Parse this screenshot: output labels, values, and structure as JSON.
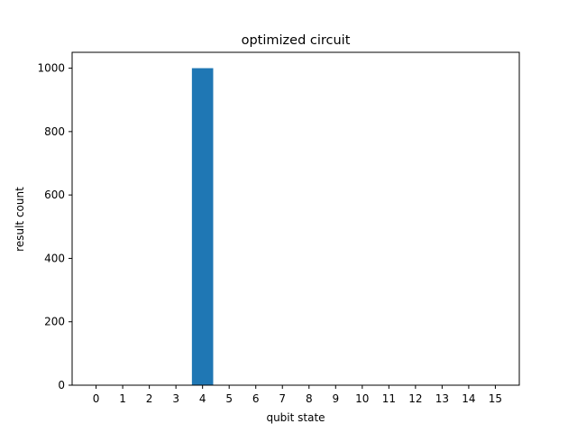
{
  "chart_data": {
    "type": "bar",
    "title": "optimized circuit",
    "xlabel": "qubit state",
    "ylabel": "result count",
    "categories": [
      "0",
      "1",
      "2",
      "3",
      "4",
      "5",
      "6",
      "7",
      "8",
      "9",
      "10",
      "11",
      "12",
      "13",
      "14",
      "15"
    ],
    "values": [
      0,
      0,
      0,
      0,
      1000,
      0,
      0,
      0,
      0,
      0,
      0,
      0,
      0,
      0,
      0,
      0
    ],
    "ylim": [
      0,
      1050
    ],
    "yticks": [
      0,
      200,
      400,
      600,
      800,
      1000
    ],
    "grid": false,
    "bar_color": "#1f77b4"
  }
}
